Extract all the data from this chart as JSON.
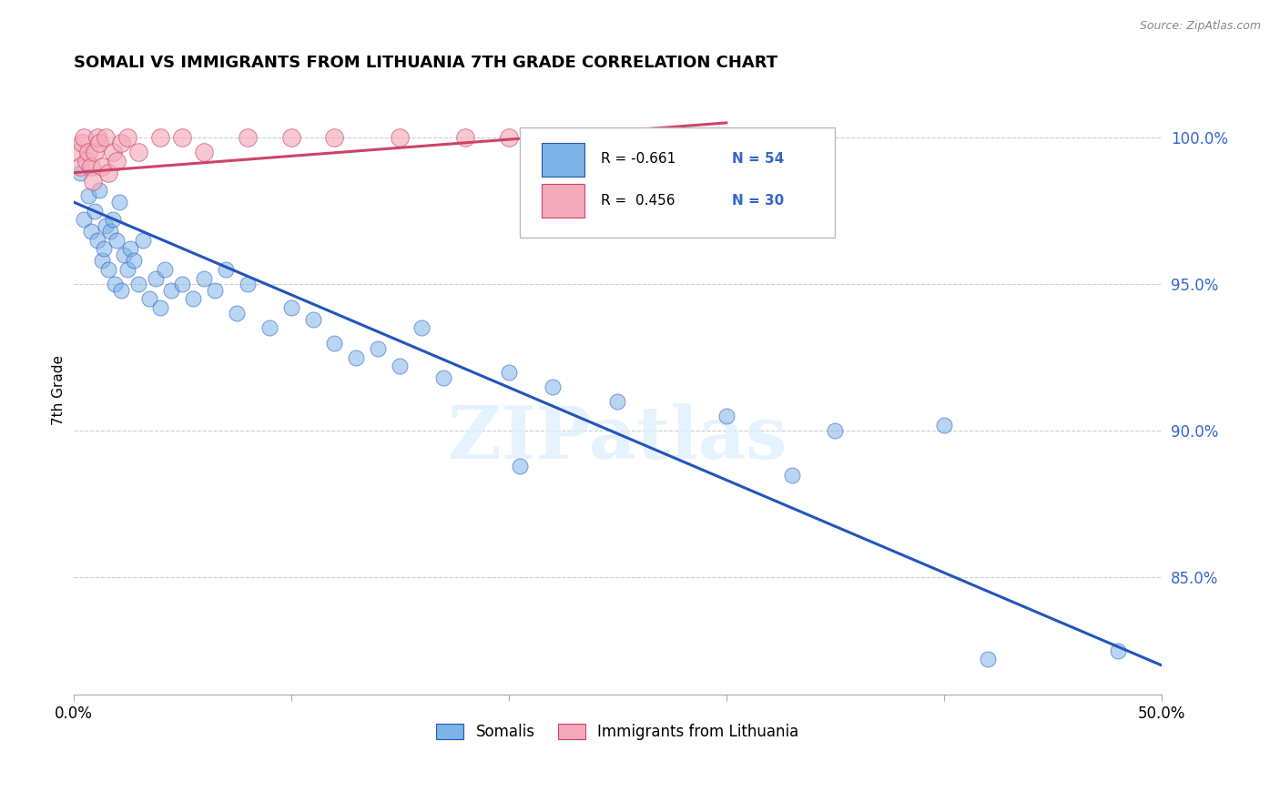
{
  "title": "SOMALI VS IMMIGRANTS FROM LITHUANIA 7TH GRADE CORRELATION CHART",
  "source": "Source: ZipAtlas.com",
  "ylabel": "7th Grade",
  "xlim": [
    0.0,
    50.0
  ],
  "ylim": [
    81.0,
    101.8
  ],
  "yticks": [
    85.0,
    90.0,
    95.0,
    100.0
  ],
  "ytick_labels": [
    "85.0%",
    "90.0%",
    "95.0%",
    "100.0%"
  ],
  "xticks": [
    0.0,
    10.0,
    20.0,
    30.0,
    40.0,
    50.0
  ],
  "xtick_labels": [
    "0.0%",
    "",
    "",
    "",
    "",
    "50.0%"
  ],
  "watermark": "ZIPatlas",
  "blue_color": "#7EB3E8",
  "pink_color": "#F4AABB",
  "blue_line_color": "#2255BB",
  "pink_line_color": "#CC4466",
  "somali_x": [
    0.3,
    0.5,
    0.7,
    0.8,
    1.0,
    1.1,
    1.2,
    1.3,
    1.4,
    1.5,
    1.6,
    1.7,
    1.8,
    1.9,
    2.0,
    2.1,
    2.2,
    2.3,
    2.5,
    2.6,
    2.8,
    3.0,
    3.2,
    3.5,
    3.8,
    4.0,
    4.2,
    4.5,
    5.0,
    5.5,
    6.0,
    6.5,
    7.0,
    7.5,
    8.0,
    9.0,
    10.0,
    11.0,
    12.0,
    13.0,
    14.0,
    15.0,
    16.0,
    17.0,
    20.0,
    22.0,
    25.0,
    30.0,
    35.0,
    40.0,
    20.5,
    33.0,
    42.0,
    48.0
  ],
  "somali_y": [
    98.8,
    97.2,
    98.0,
    96.8,
    97.5,
    96.5,
    98.2,
    95.8,
    96.2,
    97.0,
    95.5,
    96.8,
    97.2,
    95.0,
    96.5,
    97.8,
    94.8,
    96.0,
    95.5,
    96.2,
    95.8,
    95.0,
    96.5,
    94.5,
    95.2,
    94.2,
    95.5,
    94.8,
    95.0,
    94.5,
    95.2,
    94.8,
    95.5,
    94.0,
    95.0,
    93.5,
    94.2,
    93.8,
    93.0,
    92.5,
    92.8,
    92.2,
    93.5,
    91.8,
    92.0,
    91.5,
    91.0,
    90.5,
    90.0,
    90.2,
    88.8,
    88.5,
    82.2,
    82.5
  ],
  "lithuania_x": [
    0.2,
    0.3,
    0.4,
    0.5,
    0.6,
    0.7,
    0.8,
    0.9,
    1.0,
    1.1,
    1.2,
    1.3,
    1.5,
    1.6,
    1.8,
    2.0,
    2.2,
    2.5,
    3.0,
    4.0,
    5.0,
    6.0,
    8.0,
    10.0,
    12.0,
    15.0,
    18.0,
    20.0,
    25.0,
    30.0
  ],
  "lithuania_y": [
    99.5,
    99.0,
    99.8,
    100.0,
    99.2,
    99.5,
    99.0,
    98.5,
    99.5,
    100.0,
    99.8,
    99.0,
    100.0,
    98.8,
    99.5,
    99.2,
    99.8,
    100.0,
    99.5,
    100.0,
    100.0,
    99.5,
    100.0,
    100.0,
    100.0,
    100.0,
    100.0,
    100.0,
    100.0,
    100.0
  ],
  "blue_trend_x": [
    0.0,
    50.0
  ],
  "blue_trend_y": [
    97.8,
    82.0
  ],
  "pink_trend_x": [
    0.0,
    30.0
  ],
  "pink_trend_y": [
    98.8,
    100.5
  ]
}
